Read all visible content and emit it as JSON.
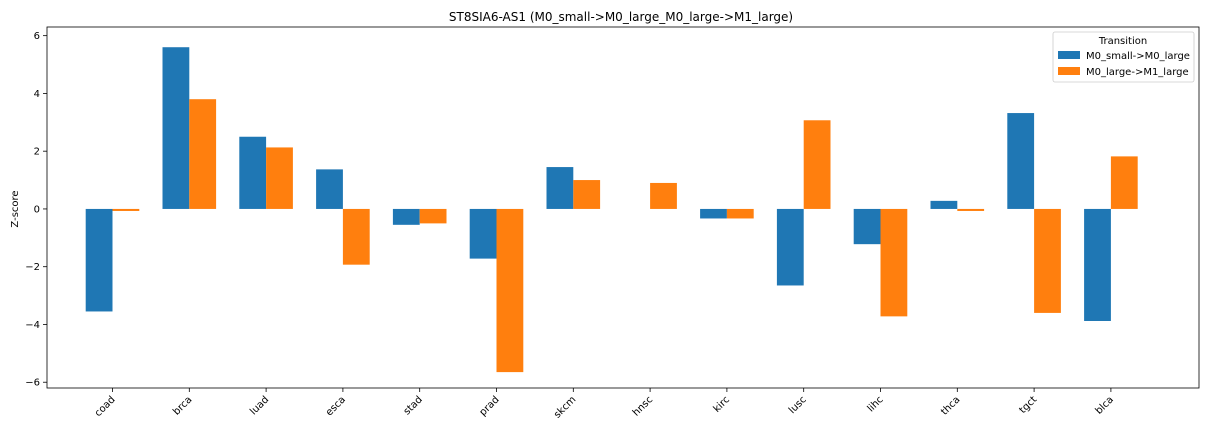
{
  "chart_data": {
    "type": "bar",
    "title": "ST8SIA6-AS1 (M0_small->M0_large_M0_large->M1_large)",
    "xlabel": "",
    "ylabel": "Z-score",
    "ylim": [
      -6.2,
      6.3
    ],
    "yticks": [
      -6,
      -4,
      -2,
      0,
      2,
      4,
      6
    ],
    "ytick_labels": [
      "−6",
      "−4",
      "−2",
      "0",
      "2",
      "4",
      "6"
    ],
    "grid": false,
    "categories": [
      "coad",
      "brca",
      "luad",
      "esca",
      "stad",
      "prad",
      "skcm",
      "hnsc",
      "kirc",
      "lusc",
      "lihc",
      "thca",
      "tgct",
      "blca"
    ],
    "series": [
      {
        "name": "M0_small->M0_large",
        "color": "#1f77b4",
        "values": [
          -3.55,
          5.6,
          2.5,
          1.37,
          -0.55,
          -1.72,
          1.45,
          0.0,
          -0.33,
          -2.65,
          -1.22,
          0.28,
          3.32,
          -3.88
        ]
      },
      {
        "name": "M0_large->M1_large",
        "color": "#ff7f0e",
        "values": [
          -0.07,
          3.8,
          2.13,
          -1.93,
          -0.5,
          -5.65,
          1.0,
          0.9,
          -0.33,
          3.07,
          -3.72,
          -0.07,
          -3.6,
          1.82
        ]
      }
    ],
    "legend": {
      "title": "Transition",
      "placement": "top-right"
    }
  }
}
